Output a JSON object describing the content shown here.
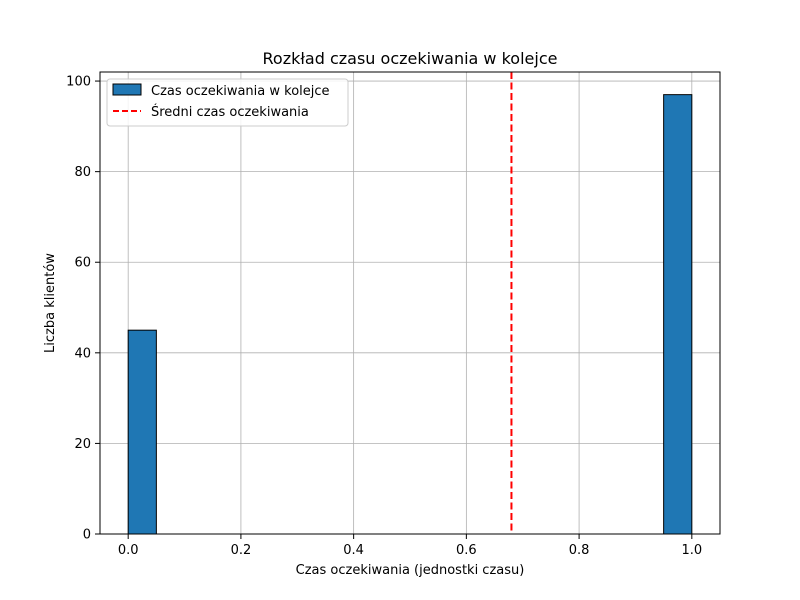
{
  "chart_data": {
    "type": "bar",
    "title": "Rozkład czasu oczekiwania w kolejce",
    "xlabel": "Czas oczekiwania (jednostki czasu)",
    "ylabel": "Liczba klientów",
    "xlim": [
      -0.05,
      1.05
    ],
    "ylim": [
      0,
      102
    ],
    "grid": true,
    "legend_position": "upper-left",
    "x_ticks": [
      0.0,
      0.2,
      0.4,
      0.6,
      0.8,
      1.0
    ],
    "x_tick_labels": [
      "0.0",
      "0.2",
      "0.4",
      "0.6",
      "0.8",
      "1.0"
    ],
    "y_ticks": [
      0,
      20,
      40,
      60,
      80,
      100
    ],
    "y_tick_labels": [
      "0",
      "20",
      "40",
      "60",
      "80",
      "100"
    ],
    "bins": [
      {
        "start": 0.0,
        "end": 0.05,
        "count": 45
      },
      {
        "start": 0.95,
        "end": 1.0,
        "count": 97
      }
    ],
    "bar_series_name": "Czas oczekiwania w kolejce",
    "bar_color": "#1f77b4",
    "mean_value": 0.68,
    "mean_line_name": "Średni czas oczekiwania",
    "mean_line_color": "#ff0000"
  }
}
